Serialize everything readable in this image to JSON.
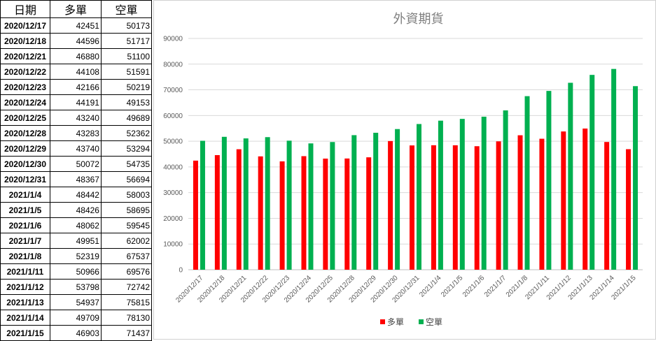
{
  "table": {
    "headers": [
      "日期",
      "多單",
      "空單"
    ],
    "rows": [
      [
        "2020/12/17",
        "42451",
        "50173"
      ],
      [
        "2020/12/18",
        "44596",
        "51717"
      ],
      [
        "2020/12/21",
        "46880",
        "51100"
      ],
      [
        "2020/12/22",
        "44108",
        "51591"
      ],
      [
        "2020/12/23",
        "42166",
        "50219"
      ],
      [
        "2020/12/24",
        "44191",
        "49153"
      ],
      [
        "2020/12/25",
        "43240",
        "49689"
      ],
      [
        "2020/12/28",
        "43283",
        "52362"
      ],
      [
        "2020/12/29",
        "43740",
        "53294"
      ],
      [
        "2020/12/30",
        "50072",
        "54735"
      ],
      [
        "2020/12/31",
        "48367",
        "56694"
      ],
      [
        "2021/1/4",
        "48442",
        "58003"
      ],
      [
        "2021/1/5",
        "48426",
        "58695"
      ],
      [
        "2021/1/6",
        "48062",
        "59545"
      ],
      [
        "2021/1/7",
        "49951",
        "62002"
      ],
      [
        "2021/1/8",
        "52319",
        "67537"
      ],
      [
        "2021/1/11",
        "50966",
        "69576"
      ],
      [
        "2021/1/12",
        "53798",
        "72742"
      ],
      [
        "2021/1/13",
        "54937",
        "75815"
      ],
      [
        "2021/1/14",
        "49709",
        "78130"
      ],
      [
        "2021/1/15",
        "46903",
        "71437"
      ]
    ]
  },
  "chart_data": {
    "type": "bar",
    "title": "外資期貨",
    "categories": [
      "2020/12/17",
      "2020/12/18",
      "2020/12/21",
      "2020/12/22",
      "2020/12/23",
      "2020/12/24",
      "2020/12/25",
      "2020/12/28",
      "2020/12/29",
      "2020/12/30",
      "2020/12/31",
      "2021/1/4",
      "2021/1/5",
      "2021/1/6",
      "2021/1/7",
      "2021/1/8",
      "2021/1/11",
      "2021/1/12",
      "2021/1/13",
      "2021/1/14",
      "2021/1/15"
    ],
    "series": [
      {
        "name": "多單",
        "color": "#ff0000",
        "values": [
          42451,
          44596,
          46880,
          44108,
          42166,
          44191,
          43240,
          43283,
          43740,
          50072,
          48367,
          48442,
          48426,
          48062,
          49951,
          52319,
          50966,
          53798,
          54937,
          49709,
          46903
        ]
      },
      {
        "name": "空單",
        "color": "#00b050",
        "values": [
          50173,
          51717,
          51100,
          51591,
          50219,
          49153,
          49689,
          52362,
          53294,
          54735,
          56694,
          58003,
          58695,
          59545,
          62002,
          67537,
          69576,
          72742,
          75815,
          78130,
          71437
        ]
      }
    ],
    "ylim": [
      0,
      90000
    ],
    "yticks": [
      0,
      10000,
      20000,
      30000,
      40000,
      50000,
      60000,
      70000,
      80000,
      90000
    ],
    "grid": true,
    "legend_position": "bottom"
  }
}
